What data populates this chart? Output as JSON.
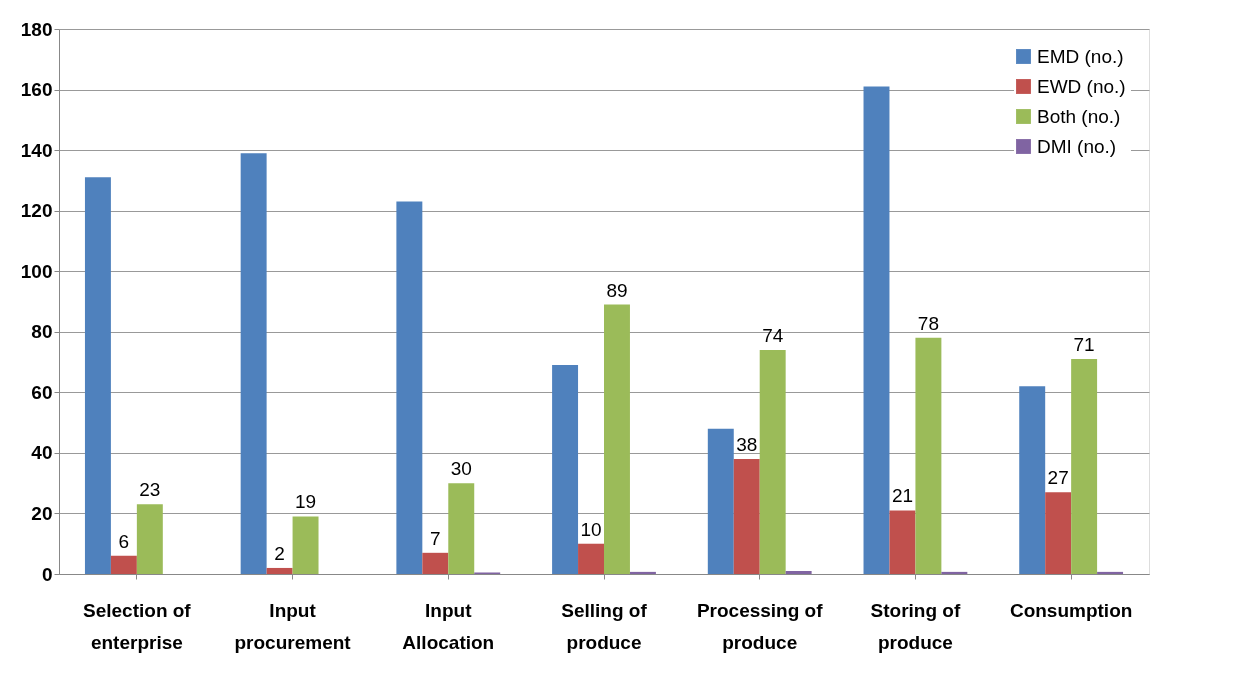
{
  "chart_data": {
    "type": "bar",
    "categories": [
      "Selection of enterprise",
      "Input procurement",
      "Input Allocation",
      "Selling of produce",
      "Processing of produce",
      "Storing of produce",
      "Consumption"
    ],
    "series": [
      {
        "name": "EMD (no.)",
        "color": "#4f81bd",
        "values": [
          131,
          139,
          123,
          69,
          48,
          161,
          62
        ]
      },
      {
        "name": "EWD  (no.)",
        "color": "#c0504d",
        "values": [
          6,
          2,
          7,
          10,
          38,
          21,
          27
        ],
        "value_labels": [
          "6",
          "2",
          "7",
          "10",
          "38",
          "21",
          "27"
        ]
      },
      {
        "name": "Both  (no.)",
        "color": "#9bbb59",
        "values": [
          23,
          19,
          30,
          89,
          74,
          78,
          71
        ],
        "value_labels": [
          "23",
          "19",
          "30",
          "89",
          "74",
          "78",
          "71"
        ]
      },
      {
        "name": "DMI  (no.)",
        "color": "#8064a2",
        "values": [
          0,
          0,
          0.5,
          0.7,
          1,
          0.7,
          0.7
        ]
      }
    ],
    "ylim": [
      0,
      180
    ],
    "yticks": [
      0,
      20,
      40,
      60,
      80,
      100,
      120,
      140,
      160,
      180
    ],
    "grid": "y",
    "legend": "top right"
  }
}
